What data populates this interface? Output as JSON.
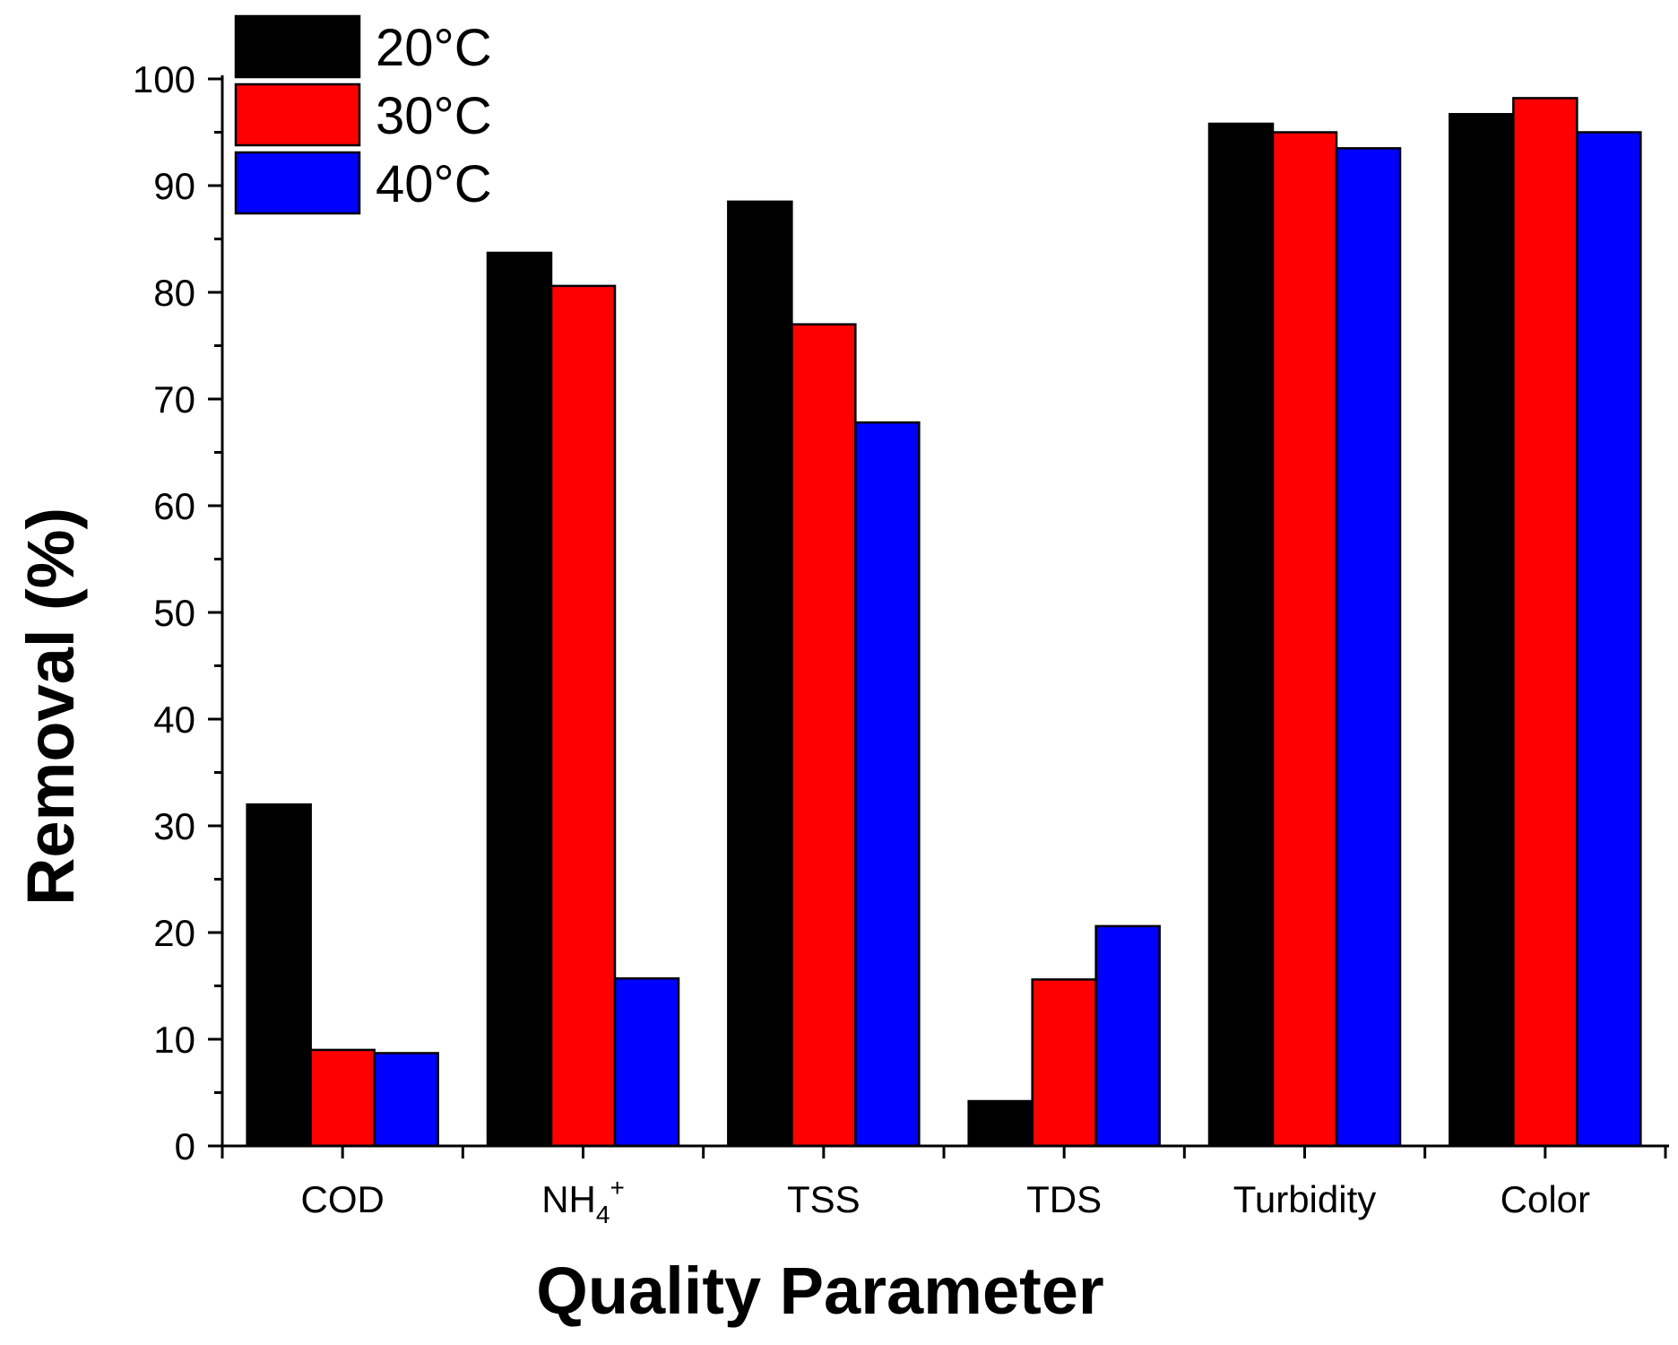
{
  "chart_data": {
    "type": "bar",
    "title": "",
    "xlabel": "Quality Parameter",
    "ylabel": "Removal (%)",
    "ylim": [
      0,
      100
    ],
    "yticks": [
      "0",
      "10",
      "20",
      "30",
      "40",
      "50",
      "60",
      "70",
      "80",
      "90",
      "100"
    ],
    "categories": [
      {
        "text": "COD",
        "sub": "",
        "sup": ""
      },
      {
        "text": "NH",
        "sub": "4",
        "sup": "+"
      },
      {
        "text": "TSS",
        "sub": "",
        "sup": ""
      },
      {
        "text": "TDS",
        "sub": "",
        "sup": ""
      },
      {
        "text": "Turbidity",
        "sub": "",
        "sup": ""
      },
      {
        "text": "Color",
        "sub": "",
        "sup": ""
      }
    ],
    "series": [
      {
        "name": "20°C",
        "color": "#000000",
        "values": [
          32,
          83.7,
          88.5,
          4.2,
          95.8,
          96.7
        ]
      },
      {
        "name": "30°C",
        "color": "#ff0000",
        "values": [
          9,
          80.6,
          77,
          15.6,
          95,
          98.2
        ]
      },
      {
        "name": "40°C",
        "color": "#0000ff",
        "values": [
          8.7,
          15.7,
          67.8,
          20.6,
          93.5,
          95
        ]
      }
    ],
    "legend_position": "top-left",
    "grid": false
  }
}
